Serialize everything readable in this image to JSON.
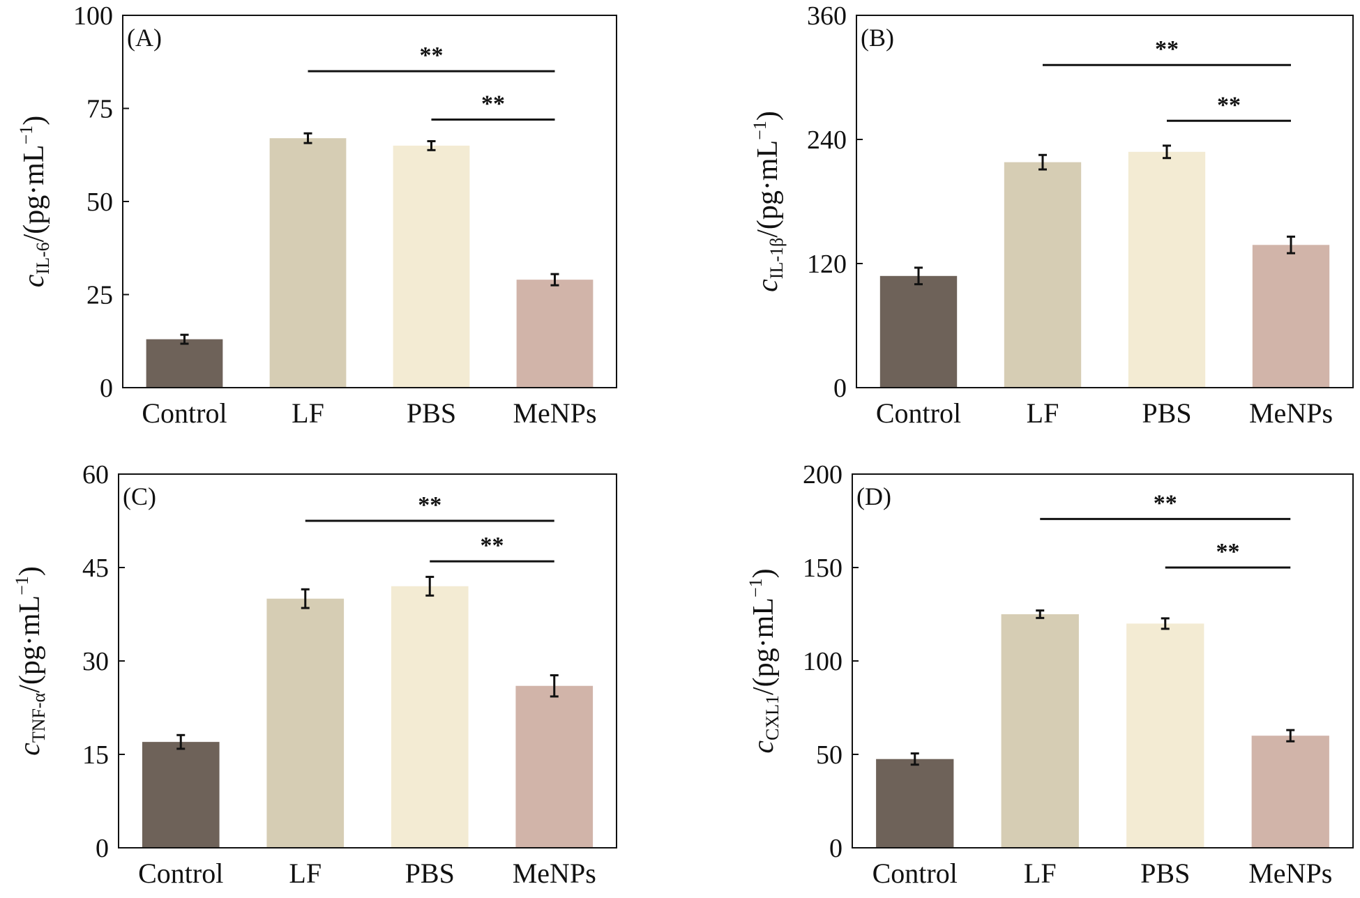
{
  "figure": {
    "ylabel_unit": "/(pg·mL",
    "ylabel_exp": "−1",
    "ylabel_close": ")"
  },
  "chart_data": [
    {
      "type": "bar",
      "panel": "(A)",
      "ylabel_var": "c",
      "ylabel_sub": "IL-6",
      "categories": [
        "Control",
        "LF",
        "PBS",
        "MeNPs"
      ],
      "values": [
        13,
        67,
        65,
        29
      ],
      "errors": [
        1.2,
        1.3,
        1.2,
        1.5
      ],
      "colors": [
        "#6e6259",
        "#d6cdb4",
        "#f3ebd3",
        "#d1b4a9"
      ],
      "ylim": [
        0,
        100
      ],
      "yticks": [
        "0",
        "25",
        "50",
        "75",
        "100"
      ],
      "significance": [
        {
          "from": "LF",
          "to": "MeNPs",
          "value": 85,
          "label": "**"
        },
        {
          "from": "PBS",
          "to": "MeNPs",
          "value": 72,
          "label": "**"
        }
      ]
    },
    {
      "type": "bar",
      "panel": "(B)",
      "ylabel_var": "c",
      "ylabel_sub": "IL-1β",
      "categories": [
        "Control",
        "LF",
        "PBS",
        "MeNPs"
      ],
      "values": [
        108,
        218,
        228,
        138
      ],
      "errors": [
        8,
        7,
        6,
        8
      ],
      "colors": [
        "#6e6259",
        "#d6cdb4",
        "#f3ebd3",
        "#d1b4a9"
      ],
      "ylim": [
        0,
        360
      ],
      "yticks": [
        "0",
        "120",
        "240",
        "360"
      ],
      "significance": [
        {
          "from": "LF",
          "to": "MeNPs",
          "value": 312,
          "label": "**"
        },
        {
          "from": "PBS",
          "to": "MeNPs",
          "value": 258,
          "label": "**"
        }
      ]
    },
    {
      "type": "bar",
      "panel": "(C)",
      "ylabel_var": "c",
      "ylabel_sub": "TNF-α",
      "categories": [
        "Control",
        "LF",
        "PBS",
        "MeNPs"
      ],
      "values": [
        17,
        40,
        42,
        26
      ],
      "errors": [
        1.1,
        1.5,
        1.5,
        1.7
      ],
      "colors": [
        "#6e6259",
        "#d6cdb4",
        "#f3ebd3",
        "#d1b4a9"
      ],
      "ylim": [
        0,
        60
      ],
      "yticks": [
        "0",
        "15",
        "30",
        "45",
        "60"
      ],
      "significance": [
        {
          "from": "LF",
          "to": "MeNPs",
          "value": 52.5,
          "label": "**"
        },
        {
          "from": "PBS",
          "to": "MeNPs",
          "value": 46,
          "label": "**"
        }
      ]
    },
    {
      "type": "bar",
      "panel": "(D)",
      "ylabel_var": "c",
      "ylabel_sub": "CXL1",
      "categories": [
        "Control",
        "LF",
        "PBS",
        "MeNPs"
      ],
      "values": [
        47.5,
        125,
        120,
        60
      ],
      "errors": [
        3,
        2,
        2.8,
        3
      ],
      "colors": [
        "#6e6259",
        "#d6cdb4",
        "#f3ebd3",
        "#d1b4a9"
      ],
      "ylim": [
        0,
        200
      ],
      "yticks": [
        "0",
        "50",
        "100",
        "150",
        "200"
      ],
      "significance": [
        {
          "from": "LF",
          "to": "MeNPs",
          "value": 176,
          "label": "**"
        },
        {
          "from": "PBS",
          "to": "MeNPs",
          "value": 150,
          "label": "**"
        }
      ]
    }
  ]
}
